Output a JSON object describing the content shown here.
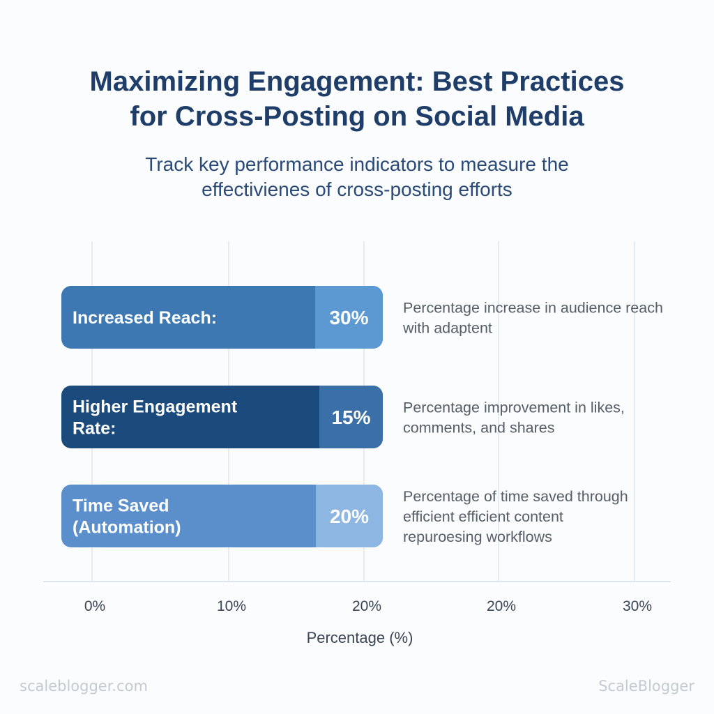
{
  "header": {
    "title_lines": [
      "Maximizing Engagement: Best Practices",
      "for Cross-Posting on Social Media"
    ],
    "subtitle_lines": [
      "Track key performance indicators to measure the",
      "effectivienes of cross-posting efforts"
    ]
  },
  "chart_data": {
    "type": "bar",
    "orientation": "horizontal",
    "title": "Maximizing Engagement: Best Practices for Cross-Posting on Social Media",
    "subtitle": "Track key performance indicators to measure the effectivienes of cross-posting efforts",
    "xlabel": "Percentage (%)",
    "ylabel": "",
    "x_tick_labels": [
      "0%",
      "10%",
      "20%",
      "20%",
      "30%"
    ],
    "grid": true,
    "categories": [
      {
        "label_lines": [
          "Increased Reach:"
        ],
        "value": 30,
        "value_label": "30%",
        "description_lines": [
          "Percentage increase in audience reach",
          "with adaptent"
        ],
        "color_main": "#3d78b2",
        "color_end": "#5c98d2"
      },
      {
        "label_lines": [
          "Higher Engagement",
          "Rate:"
        ],
        "value": 15,
        "value_label": "15%",
        "description_lines": [
          "Percentage improvement in likes,",
          "comments, and shares"
        ],
        "color_main": "#1b4a7c",
        "color_end": "#3a6fa7"
      },
      {
        "label_lines": [
          "Time Saved",
          "(Automation)"
        ],
        "value": 20,
        "value_label": "20%",
        "description_lines": [
          "Percentage of time saved through",
          "efficient efficient content",
          "repuroesing workflows"
        ],
        "color_main": "#5a8fcb",
        "color_end": "#8db6e2"
      }
    ]
  },
  "footer": {
    "watermark_left": "scaleblogger.com",
    "watermark_right": "ScaleBlogger"
  },
  "colors": {
    "title": "#1e3d68",
    "text": "#2a4a78",
    "grid": "#dde6f0",
    "tick": "#3a4656",
    "description": "#555d66"
  }
}
